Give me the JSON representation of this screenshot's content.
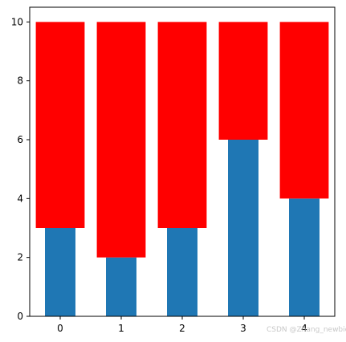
{
  "chart_data": {
    "type": "bar",
    "categories": [
      "0",
      "1",
      "2",
      "3",
      "4"
    ],
    "series": [
      {
        "values": [
          3,
          2,
          3,
          6,
          4
        ],
        "color": "#1f77b4"
      },
      {
        "values": [
          7,
          8,
          7,
          4,
          6
        ],
        "color": "#ff0000",
        "base": [
          3,
          2,
          3,
          6,
          4
        ]
      }
    ],
    "xlim": [
      -0.5,
      4.5
    ],
    "ylim": [
      0,
      10.5
    ],
    "yticks": [
      0,
      2,
      4,
      6,
      8,
      10
    ],
    "grid": false,
    "legend": "none"
  },
  "watermark": "CSDN @Zhang_newbie"
}
